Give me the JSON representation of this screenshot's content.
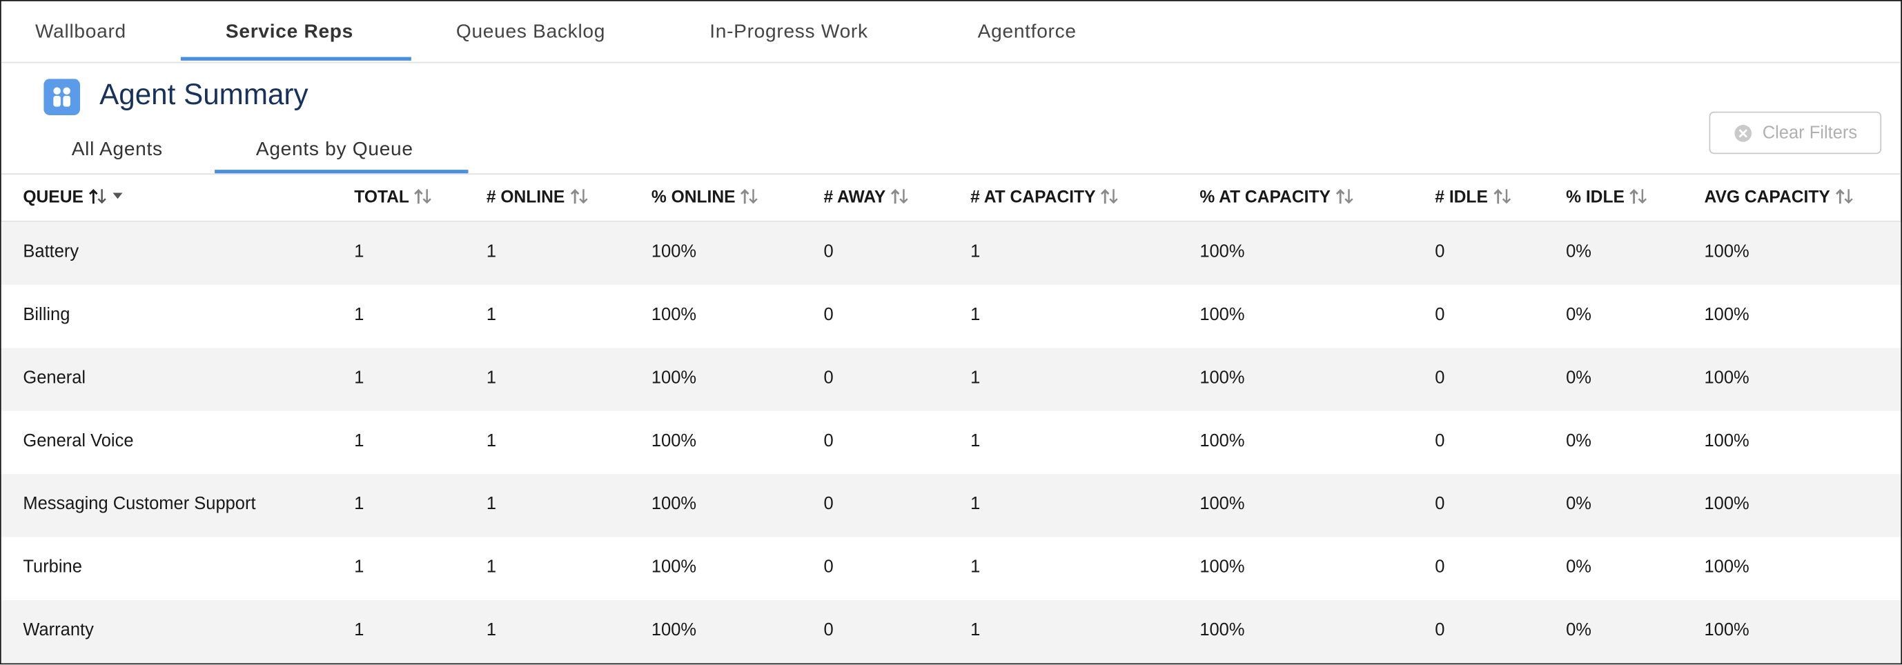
{
  "header": {
    "tabs": [
      "Wallboard",
      "Service Reps",
      "Queues Backlog",
      "In-Progress Work",
      "Agentforce"
    ],
    "title": "Agent Summary",
    "subtabs": [
      "All Agents",
      "Agents by Queue"
    ],
    "clear_filters": "Clear Filters"
  },
  "table": {
    "columns": [
      "QUEUE",
      "TOTAL",
      "# ONLINE",
      "% ONLINE",
      "# AWAY",
      "# AT CAPACITY",
      "% AT CAPACITY",
      "# IDLE",
      "% IDLE",
      "AVG CAPACITY"
    ],
    "rows": [
      [
        "Battery",
        "1",
        "1",
        "100%",
        "0",
        "1",
        "100%",
        "0",
        "0%",
        "100%"
      ],
      [
        "Billing",
        "1",
        "1",
        "100%",
        "0",
        "1",
        "100%",
        "0",
        "0%",
        "100%"
      ],
      [
        "General",
        "1",
        "1",
        "100%",
        "0",
        "1",
        "100%",
        "0",
        "0%",
        "100%"
      ],
      [
        "General Voice",
        "1",
        "1",
        "100%",
        "0",
        "1",
        "100%",
        "0",
        "0%",
        "100%"
      ],
      [
        "Messaging Customer Support",
        "1",
        "1",
        "100%",
        "0",
        "1",
        "100%",
        "0",
        "0%",
        "100%"
      ],
      [
        "Turbine",
        "1",
        "1",
        "100%",
        "0",
        "1",
        "100%",
        "0",
        "0%",
        "100%"
      ],
      [
        "Warranty",
        "1",
        "1",
        "100%",
        "0",
        "1",
        "100%",
        "0",
        "0%",
        "100%"
      ]
    ]
  }
}
